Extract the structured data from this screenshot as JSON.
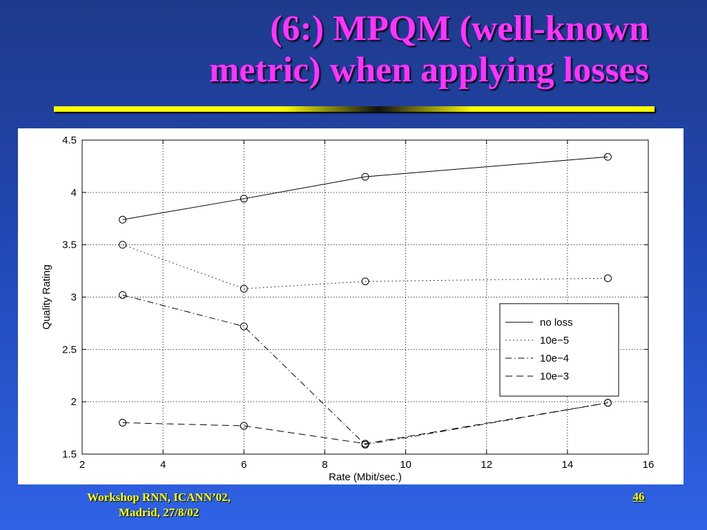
{
  "slide": {
    "title_line1": "(6:) MPQM (well-known",
    "title_line2": "metric) when applying losses",
    "footer_line1": "Workshop RNN, ICANN’02,",
    "footer_line2": "Madrid, 27/8/02",
    "page_number": "46",
    "colors": {
      "title": "#ff33ff",
      "footer": "#ffff00",
      "rule": "#ffff00"
    }
  },
  "chart_data": {
    "type": "line",
    "xlabel": "Rate (Mbit/sec.)",
    "ylabel": "Quality Rating",
    "xlim": [
      2,
      16
    ],
    "ylim": [
      1.5,
      4.5
    ],
    "xticks": [
      2,
      4,
      6,
      8,
      10,
      12,
      14,
      16
    ],
    "yticks": [
      1.5,
      2,
      2.5,
      3,
      3.5,
      4,
      4.5
    ],
    "xtick_labels": [
      "2",
      "4",
      "6",
      "8",
      "10",
      "12",
      "14",
      "16"
    ],
    "ytick_labels": [
      "1.5",
      "2",
      "2.5",
      "3",
      "3.5",
      "4",
      "4.5"
    ],
    "grid": true,
    "legend_position": "right",
    "x": [
      3,
      6,
      9,
      15
    ],
    "series": [
      {
        "name": "no loss",
        "style": "solid",
        "values": [
          3.74,
          3.94,
          4.15,
          4.34
        ]
      },
      {
        "name": "10e−5",
        "style": "dotted",
        "values": [
          3.5,
          3.08,
          3.15,
          3.18
        ]
      },
      {
        "name": "10e−4",
        "style": "dashdot",
        "values": [
          3.02,
          2.72,
          1.59,
          1.99
        ]
      },
      {
        "name": "10e−3",
        "style": "dashed",
        "values": [
          1.8,
          1.77,
          1.6,
          1.99
        ]
      }
    ]
  }
}
